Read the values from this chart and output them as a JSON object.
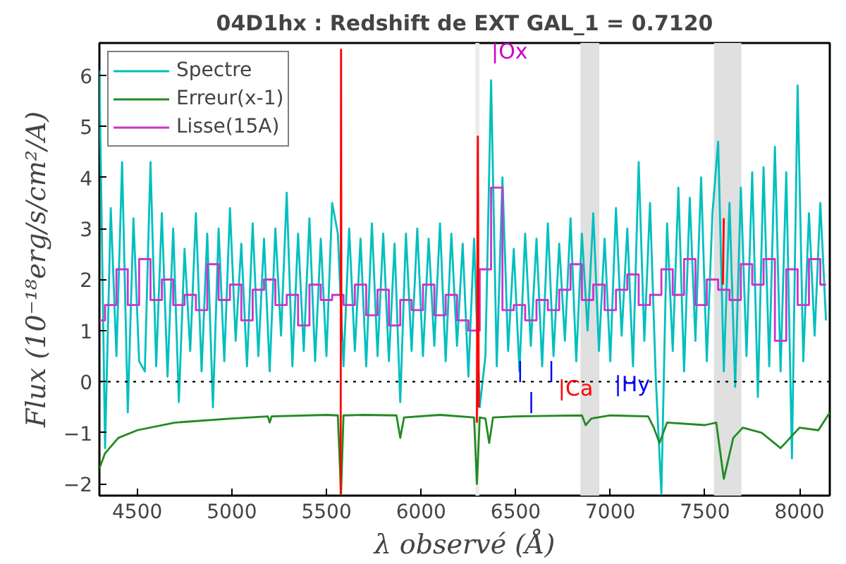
{
  "chart_data": {
    "type": "line",
    "title": "04D1hx : Redshift de EXT GAL_1 = 0.7120",
    "xlabel": "λ observé (Å)",
    "ylabel": "Flux (10⁻¹⁸erg/s/cm²/A)",
    "xlim": [
      4300,
      8160
    ],
    "ylim": [
      -2.23,
      6.63
    ],
    "xticks": [
      4500,
      5000,
      5500,
      6000,
      6500,
      7000,
      7500,
      8000
    ],
    "yticks": [
      -2,
      -1,
      0,
      1,
      2,
      3,
      4,
      5,
      6
    ],
    "grid": false,
    "legend": "top left",
    "line_style": "solid",
    "marker": "none",
    "series": [
      {
        "name": "Spectre",
        "color": "#00bfbf",
        "x": [
          4300,
          4330,
          4360,
          4390,
          4420,
          4450,
          4480,
          4510,
          4540,
          4570,
          4600,
          4630,
          4660,
          4690,
          4720,
          4750,
          4780,
          4810,
          4840,
          4870,
          4900,
          4930,
          4960,
          4990,
          5020,
          5050,
          5080,
          5110,
          5140,
          5170,
          5200,
          5230,
          5260,
          5290,
          5320,
          5350,
          5380,
          5410,
          5440,
          5470,
          5500,
          5530,
          5560,
          5590,
          5620,
          5650,
          5680,
          5710,
          5740,
          5770,
          5800,
          5830,
          5860,
          5890,
          5920,
          5950,
          5980,
          6010,
          6040,
          6070,
          6100,
          6130,
          6160,
          6190,
          6220,
          6250,
          6280,
          6310,
          6340,
          6370,
          6400,
          6430,
          6460,
          6490,
          6520,
          6550,
          6580,
          6610,
          6640,
          6670,
          6700,
          6730,
          6760,
          6790,
          6820,
          6850,
          6880,
          6910,
          6940,
          6970,
          7000,
          7030,
          7060,
          7090,
          7120,
          7150,
          7180,
          7210,
          7240,
          7270,
          7300,
          7330,
          7360,
          7390,
          7420,
          7450,
          7480,
          7510,
          7540,
          7570,
          7600,
          7630,
          7660,
          7690,
          7720,
          7750,
          7780,
          7810,
          7840,
          7870,
          7900,
          7930,
          7960,
          7990,
          8020,
          8050,
          8080,
          8110,
          8140
        ],
        "values": [
          6.1,
          -1.3,
          3.4,
          0.5,
          4.3,
          -0.6,
          3.2,
          0.4,
          0.2,
          4.3,
          0.3,
          3.3,
          0.1,
          3.0,
          -0.4,
          2.6,
          0.6,
          3.3,
          0.2,
          2.9,
          -0.5,
          3.0,
          0.4,
          3.4,
          0.8,
          2.7,
          0.3,
          3.1,
          0.5,
          2.8,
          0.2,
          3.0,
          0.9,
          3.7,
          0.3,
          2.9,
          0.6,
          3.2,
          0.4,
          2.8,
          0.5,
          3.5,
          2.9,
          0.3,
          3.0,
          0.6,
          2.8,
          0.3,
          3.1,
          0.5,
          2.9,
          0.4,
          2.7,
          -0.4,
          2.9,
          0.6,
          3.0,
          0.5,
          2.8,
          0.7,
          3.1,
          0.4,
          2.9,
          0.7,
          2.7,
          0.1,
          2.8,
          -0.5,
          0.5,
          5.9,
          0.3,
          4.0,
          0.6,
          2.6,
          0.2,
          2.9,
          0.7,
          2.8,
          0.3,
          3.1,
          0.5,
          2.7,
          0.8,
          3.2,
          0.4,
          2.9,
          1.0,
          3.3,
          0.6,
          2.8,
          0.4,
          3.4,
          0.9,
          3.0,
          0.3,
          4.3,
          0.8,
          3.5,
          0.1,
          -2.2,
          3.1,
          0.6,
          3.8,
          0.2,
          3.6,
          0.8,
          4.0,
          0.4,
          3.3,
          4.7,
          0.2,
          3.5,
          -0.1,
          3.8,
          0.5,
          4.1,
          -0.3,
          4.2,
          0.3,
          4.6,
          0.2,
          4.1,
          -1.5,
          5.8,
          0.4,
          3.3,
          0.9,
          3.5,
          1.2
        ]
      },
      {
        "name": "Erreur(x-1)",
        "color": "#228b22",
        "x": [
          4300,
          4330,
          4400,
          4500,
          4700,
          5000,
          5190,
          5200,
          5210,
          5500,
          5560,
          5577,
          5590,
          5700,
          5870,
          5890,
          5910,
          6100,
          6280,
          6295,
          6310,
          6340,
          6360,
          6380,
          6500,
          6850,
          6870,
          6900,
          7000,
          7200,
          7230,
          7260,
          7300,
          7500,
          7560,
          7600,
          7650,
          7700,
          7800,
          7900,
          8000,
          8100,
          8160
        ],
        "values": [
          -1.7,
          -1.4,
          -1.1,
          -0.95,
          -0.8,
          -0.72,
          -0.68,
          -0.8,
          -0.68,
          -0.65,
          -0.66,
          -2.2,
          -0.66,
          -0.65,
          -0.66,
          -1.1,
          -0.7,
          -0.65,
          -0.7,
          -2.0,
          -0.7,
          -0.72,
          -1.2,
          -0.7,
          -0.68,
          -0.66,
          -0.85,
          -0.72,
          -0.66,
          -0.68,
          -0.9,
          -1.2,
          -0.8,
          -0.85,
          -0.8,
          -1.9,
          -1.1,
          -0.9,
          -1.0,
          -1.3,
          -0.9,
          -0.95,
          -0.6
        ]
      },
      {
        "name": "Lisse(15A)",
        "type": "step",
        "color": "#cc33cc",
        "x": [
          4300,
          4360,
          4420,
          4480,
          4540,
          4600,
          4660,
          4720,
          4780,
          4840,
          4900,
          4960,
          5020,
          5080,
          5140,
          5200,
          5260,
          5320,
          5380,
          5440,
          5500,
          5560,
          5620,
          5680,
          5740,
          5800,
          5860,
          5920,
          5980,
          6040,
          6100,
          6160,
          6220,
          6280,
          6340,
          6400,
          6460,
          6520,
          6580,
          6640,
          6700,
          6760,
          6820,
          6880,
          6940,
          7000,
          7060,
          7120,
          7180,
          7240,
          7300,
          7360,
          7420,
          7480,
          7540,
          7600,
          7660,
          7720,
          7780,
          7840,
          7900,
          7960,
          8020,
          8080,
          8140
        ],
        "values": [
          1.2,
          1.5,
          2.2,
          1.5,
          2.4,
          1.6,
          2.0,
          1.5,
          1.7,
          1.4,
          2.3,
          1.6,
          1.9,
          1.2,
          1.8,
          2.0,
          1.5,
          1.7,
          1.1,
          1.9,
          1.6,
          1.7,
          1.5,
          1.9,
          1.3,
          1.8,
          1.1,
          1.6,
          1.4,
          1.9,
          1.3,
          1.7,
          1.2,
          1.0,
          2.2,
          3.8,
          1.4,
          1.5,
          1.2,
          1.6,
          1.4,
          1.8,
          2.3,
          1.6,
          1.9,
          1.4,
          1.8,
          2.1,
          1.5,
          1.7,
          2.2,
          1.7,
          2.4,
          1.5,
          2.0,
          1.8,
          1.6,
          2.3,
          1.9,
          2.4,
          0.8,
          2.2,
          1.5,
          2.4,
          1.9
        ]
      },
      {
        "color": "#ff0000",
        "x": [
          5575,
          5577,
          5579,
          5590,
          6295,
          6300,
          6305,
          6320,
          7595,
          7600
        ],
        "values": [
          -2.2,
          6.5,
          0.8,
          null,
          -0.8,
          4.8,
          -0.5,
          null,
          1.9,
          3.2
        ]
      }
    ],
    "ref_lines": [
      {
        "axis": "y",
        "value": 0,
        "color": "#000000",
        "line_style": "dotted"
      }
    ],
    "bands": [
      {
        "axis": "x",
        "from": 6287,
        "to": 6308,
        "color": "#ececec"
      },
      {
        "axis": "x",
        "from": 6842,
        "to": 6942,
        "color": "#e0e0e0"
      },
      {
        "axis": "x",
        "from": 7548,
        "to": 7693,
        "color": "#e0e0e0"
      }
    ],
    "annotations": [
      "|Ox",
      "|",
      "|",
      "|",
      "|Ca",
      "|Hy"
    ]
  }
}
